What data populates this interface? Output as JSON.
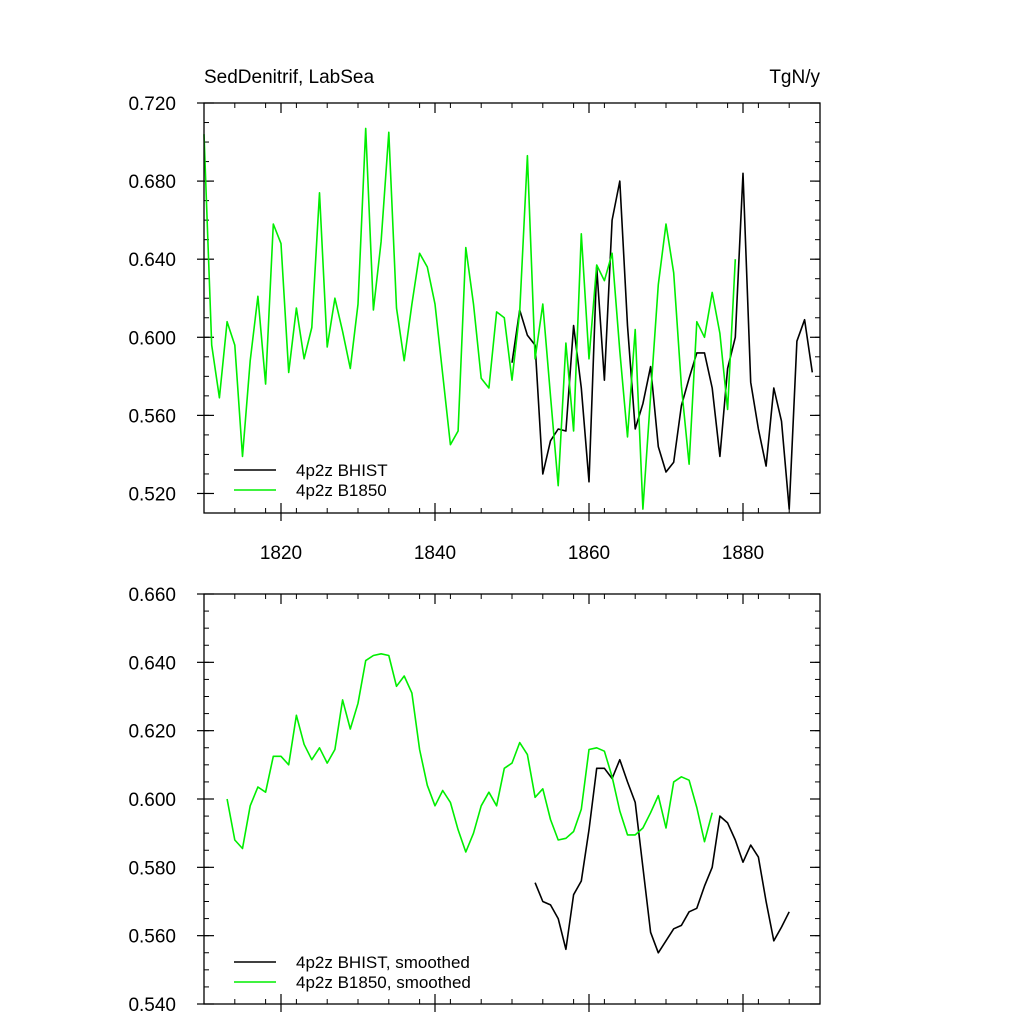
{
  "colors": {
    "bhist": "#000000",
    "b1850": "#00ee00",
    "background": "#ffffff"
  },
  "chart_data": [
    {
      "type": "line",
      "title": "SedDenitrif, LabSea",
      "units": "TgN/y",
      "xlim": [
        1810,
        1890
      ],
      "ylim": [
        0.51,
        0.72
      ],
      "y_ticks": [
        0.52,
        0.56,
        0.6,
        0.64,
        0.68,
        0.72
      ],
      "y_tick_labels": [
        "0.520",
        "0.560",
        "0.600",
        "0.640",
        "0.680",
        "0.720"
      ],
      "x_ticks": [
        1820,
        1840,
        1860,
        1880
      ],
      "x_tick_labels": [
        "1820",
        "1840",
        "1860",
        "1880"
      ],
      "legend_position": "bottom-left",
      "series": [
        {
          "name": "4p2z BHIST",
          "color": "#000000",
          "x": [
            1850,
            1851,
            1852,
            1853,
            1854,
            1855,
            1856,
            1857,
            1858,
            1859,
            1860,
            1861,
            1862,
            1863,
            1864,
            1865,
            1866,
            1867,
            1868,
            1869,
            1870,
            1871,
            1872,
            1873,
            1874,
            1875,
            1876,
            1877,
            1878,
            1879,
            1880,
            1881,
            1882,
            1883,
            1884,
            1885,
            1886,
            1887,
            1888,
            1889
          ],
          "y": [
            0.587,
            0.614,
            0.601,
            0.596,
            0.53,
            0.547,
            0.553,
            0.552,
            0.606,
            0.574,
            0.526,
            0.636,
            0.578,
            0.66,
            0.68,
            0.606,
            0.553,
            0.566,
            0.585,
            0.544,
            0.531,
            0.536,
            0.565,
            0.579,
            0.592,
            0.592,
            0.574,
            0.539,
            0.584,
            0.6,
            0.684,
            0.577,
            0.553,
            0.534,
            0.574,
            0.557,
            0.512,
            0.598,
            0.609,
            0.582
          ]
        },
        {
          "name": "4p2z B1850",
          "color": "#00ee00",
          "x": [
            1810,
            1811,
            1812,
            1813,
            1814,
            1815,
            1816,
            1817,
            1818,
            1819,
            1820,
            1821,
            1822,
            1823,
            1824,
            1825,
            1826,
            1827,
            1828,
            1829,
            1830,
            1831,
            1832,
            1833,
            1834,
            1835,
            1836,
            1837,
            1838,
            1839,
            1840,
            1841,
            1842,
            1843,
            1844,
            1845,
            1846,
            1847,
            1848,
            1849,
            1850,
            1851,
            1852,
            1853,
            1854,
            1855,
            1856,
            1857,
            1858,
            1859,
            1860,
            1861,
            1862,
            1863,
            1864,
            1865,
            1866,
            1867,
            1868,
            1869,
            1870,
            1871,
            1872,
            1873,
            1874,
            1875,
            1876,
            1877,
            1878,
            1879
          ],
          "y": [
            0.704,
            0.596,
            0.569,
            0.608,
            0.596,
            0.539,
            0.588,
            0.621,
            0.576,
            0.658,
            0.648,
            0.582,
            0.615,
            0.589,
            0.605,
            0.674,
            0.595,
            0.62,
            0.603,
            0.584,
            0.617,
            0.707,
            0.614,
            0.649,
            0.705,
            0.615,
            0.588,
            0.617,
            0.643,
            0.636,
            0.617,
            0.581,
            0.545,
            0.552,
            0.646,
            0.617,
            0.579,
            0.574,
            0.613,
            0.61,
            0.578,
            0.613,
            0.693,
            0.589,
            0.617,
            0.57,
            0.524,
            0.597,
            0.552,
            0.653,
            0.589,
            0.637,
            0.629,
            0.643,
            0.593,
            0.549,
            0.604,
            0.512,
            0.57,
            0.627,
            0.658,
            0.633,
            0.575,
            0.535,
            0.608,
            0.6,
            0.623,
            0.602,
            0.563,
            0.64
          ]
        }
      ]
    },
    {
      "type": "line",
      "xlim": [
        1810,
        1890
      ],
      "ylim": [
        0.54,
        0.66
      ],
      "y_ticks": [
        0.54,
        0.56,
        0.58,
        0.6,
        0.62,
        0.64,
        0.66
      ],
      "y_tick_labels": [
        "0.540",
        "0.560",
        "0.580",
        "0.600",
        "0.620",
        "0.640",
        "0.660"
      ],
      "x_ticks": [
        1820,
        1840,
        1860,
        1880
      ],
      "legend_position": "bottom-left",
      "series": [
        {
          "name": "4p2z BHIST, smoothed",
          "color": "#000000",
          "x": [
            1853,
            1854,
            1855,
            1856,
            1857,
            1858,
            1859,
            1860,
            1861,
            1862,
            1863,
            1864,
            1865,
            1866,
            1867,
            1868,
            1869,
            1870,
            1871,
            1872,
            1873,
            1874,
            1875,
            1876,
            1877,
            1878,
            1879,
            1880,
            1881,
            1882,
            1883,
            1884,
            1885,
            1886
          ],
          "y": [
            0.5755,
            0.57,
            0.569,
            0.565,
            0.556,
            0.572,
            0.576,
            0.591,
            0.609,
            0.609,
            0.606,
            0.6115,
            0.605,
            0.599,
            0.58,
            0.561,
            0.555,
            0.5585,
            0.562,
            0.563,
            0.567,
            0.568,
            0.5745,
            0.58,
            0.595,
            0.593,
            0.588,
            0.5815,
            0.5865,
            0.583,
            0.57,
            0.5585,
            0.5625,
            0.567
          ]
        },
        {
          "name": "4p2z B1850, smoothed",
          "color": "#00ee00",
          "x": [
            1813,
            1814,
            1815,
            1816,
            1817,
            1818,
            1819,
            1820,
            1821,
            1822,
            1823,
            1824,
            1825,
            1826,
            1827,
            1828,
            1829,
            1830,
            1831,
            1832,
            1833,
            1834,
            1835,
            1836,
            1837,
            1838,
            1839,
            1840,
            1841,
            1842,
            1843,
            1844,
            1845,
            1846,
            1847,
            1848,
            1849,
            1850,
            1851,
            1852,
            1853,
            1854,
            1855,
            1856,
            1857,
            1858,
            1859,
            1860,
            1861,
            1862,
            1863,
            1864,
            1865,
            1866,
            1867,
            1868,
            1869,
            1870,
            1871,
            1872,
            1873,
            1874,
            1875,
            1876
          ],
          "y": [
            0.6,
            0.588,
            0.5855,
            0.598,
            0.6035,
            0.602,
            0.6125,
            0.6125,
            0.61,
            0.6245,
            0.616,
            0.6115,
            0.615,
            0.6105,
            0.6145,
            0.629,
            0.6205,
            0.628,
            0.6405,
            0.642,
            0.6425,
            0.642,
            0.633,
            0.636,
            0.631,
            0.6145,
            0.604,
            0.598,
            0.6025,
            0.599,
            0.591,
            0.5845,
            0.59,
            0.598,
            0.602,
            0.598,
            0.609,
            0.6105,
            0.6165,
            0.613,
            0.6005,
            0.603,
            0.594,
            0.588,
            0.5885,
            0.5905,
            0.597,
            0.6145,
            0.615,
            0.614,
            0.6065,
            0.5965,
            0.5895,
            0.5895,
            0.5915,
            0.596,
            0.601,
            0.5915,
            0.605,
            0.6065,
            0.6055,
            0.5975,
            0.5875,
            0.596
          ]
        }
      ]
    }
  ]
}
